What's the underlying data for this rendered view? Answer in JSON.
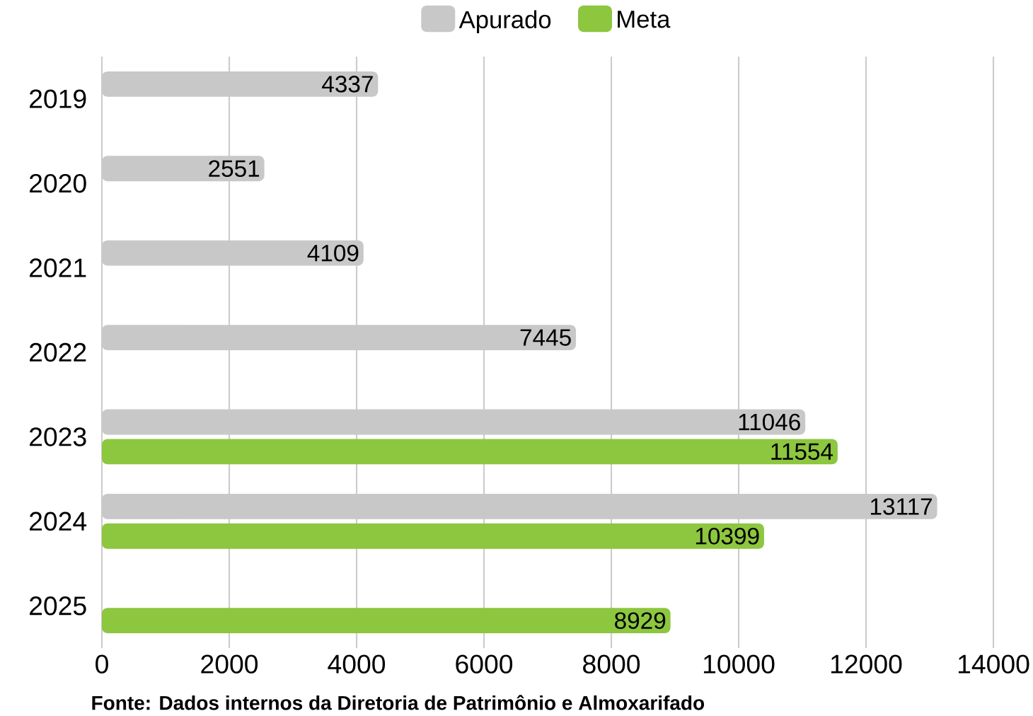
{
  "chart_data": {
    "type": "bar",
    "orientation": "horizontal",
    "categories": [
      "2019",
      "2020",
      "2021",
      "2022",
      "2023",
      "2024",
      "2025"
    ],
    "series": [
      {
        "name": "Apurado",
        "color": "#c8c8c8",
        "values": [
          4337,
          2551,
          4109,
          7445,
          11046,
          13117,
          null
        ]
      },
      {
        "name": "Meta",
        "color": "#8dc63f",
        "values": [
          null,
          null,
          null,
          null,
          11554,
          10399,
          8929
        ]
      }
    ],
    "xlim": [
      0,
      14000
    ],
    "xticks": [
      0,
      2000,
      4000,
      6000,
      8000,
      10000,
      12000,
      14000
    ],
    "grid": "x",
    "legend": "top",
    "data_labels": true,
    "annotations": [
      "Fonte:  Dados internos da Diretoria de Patrimônio e Almoxarifado"
    ]
  }
}
